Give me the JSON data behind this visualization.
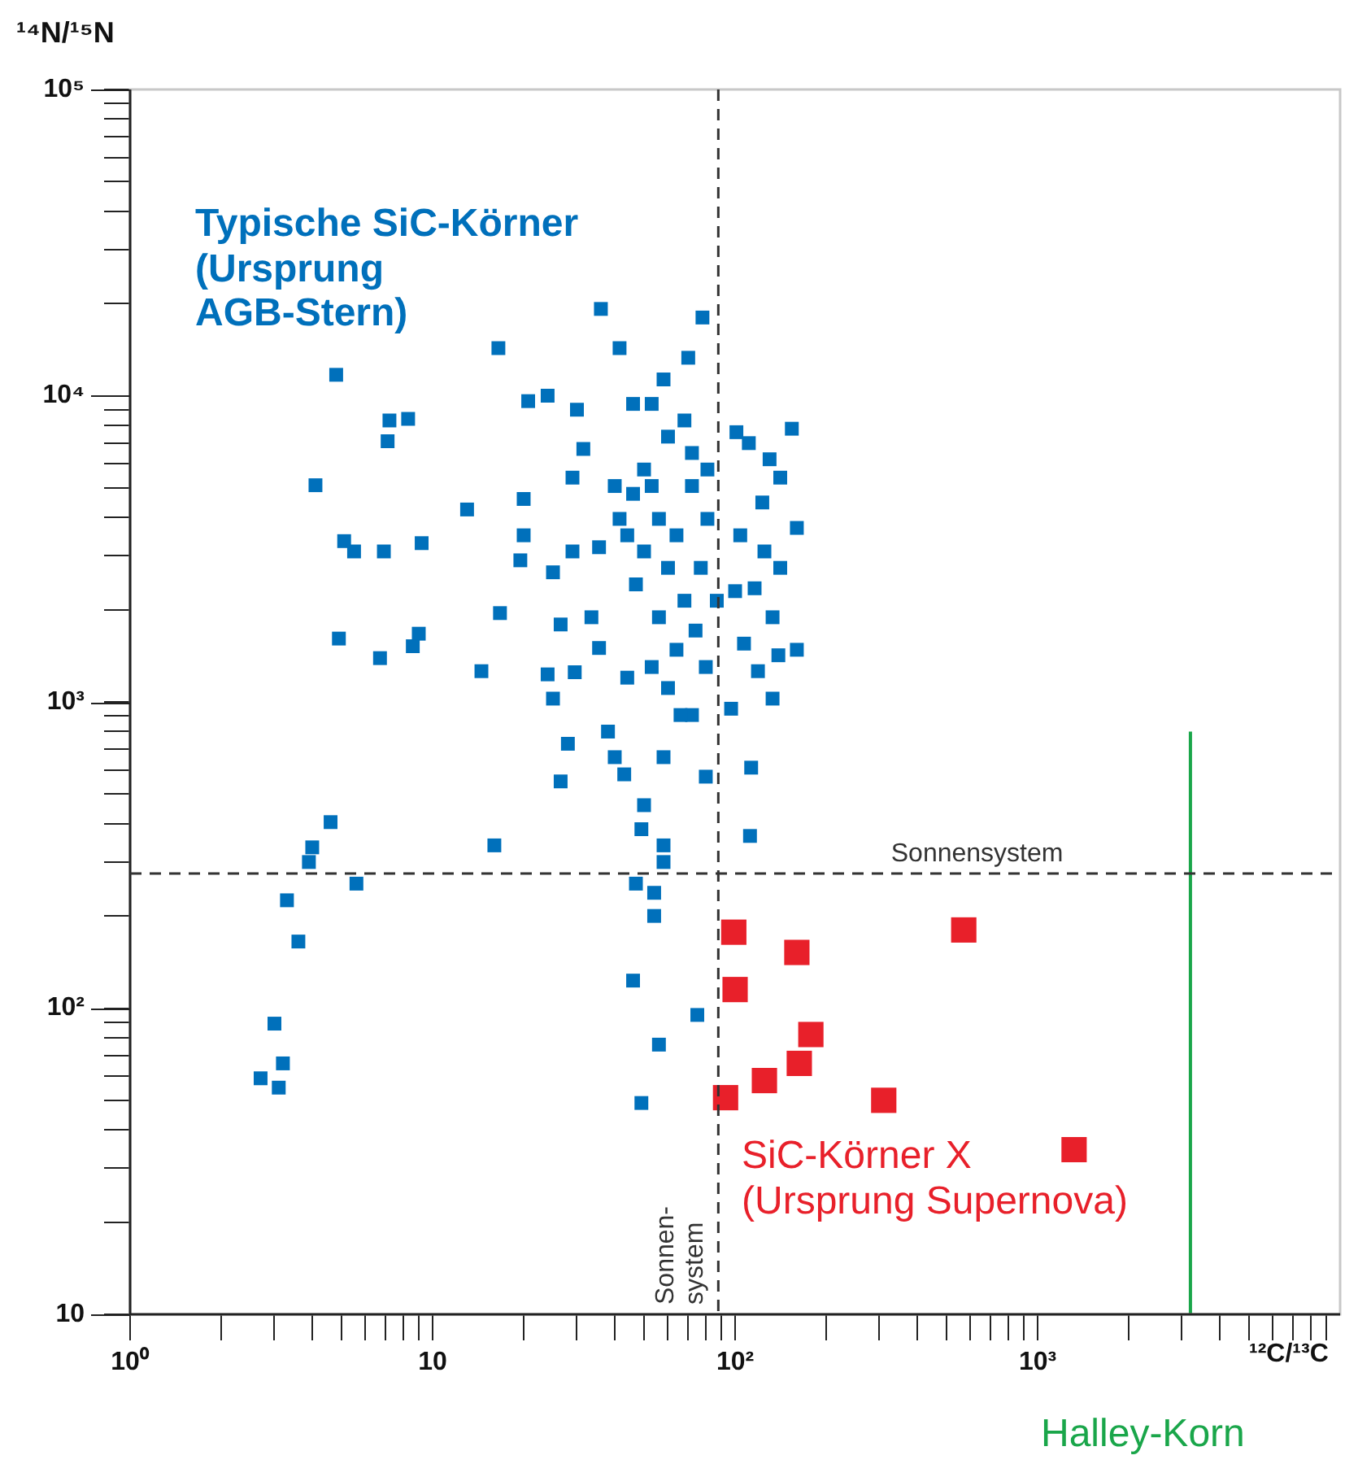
{
  "chart_data": {
    "type": "scatter",
    "xlabel": "¹²C/¹³C",
    "ylabel": "¹⁴N/¹⁵N",
    "log": "xy",
    "marker": "square",
    "xlim": [
      1,
      10000
    ],
    "ylim": [
      10,
      100000
    ],
    "xticks": [
      {
        "value": 1,
        "label": "10⁰"
      },
      {
        "value": 2,
        "label": null
      },
      {
        "value": 3,
        "label": null
      },
      {
        "value": 4,
        "label": null
      },
      {
        "value": 5,
        "label": null
      },
      {
        "value": 6,
        "label": null
      },
      {
        "value": 7,
        "label": null
      },
      {
        "value": 8,
        "label": null
      },
      {
        "value": 9,
        "label": null
      },
      10,
      {
        "value": 20,
        "label": null
      },
      {
        "value": 30,
        "label": null
      },
      {
        "value": 40,
        "label": null
      },
      {
        "value": 50,
        "label": null
      },
      {
        "value": 60,
        "label": null
      },
      {
        "value": 70,
        "label": null
      },
      {
        "value": 80,
        "label": null
      },
      {
        "value": 90,
        "label": null
      },
      {
        "value": 100,
        "label": "10²"
      },
      {
        "value": 200,
        "label": null
      },
      {
        "value": 300,
        "label": null
      },
      {
        "value": 400,
        "label": null
      },
      {
        "value": 500,
        "label": null
      },
      {
        "value": 600,
        "label": null
      },
      {
        "value": 700,
        "label": null
      },
      {
        "value": 800,
        "label": null
      },
      {
        "value": 900,
        "label": null
      },
      {
        "value": 1000,
        "label": "10³"
      },
      {
        "value": 2000,
        "label": null
      },
      {
        "value": 3000,
        "label": null
      },
      {
        "value": 4000,
        "label": null
      },
      {
        "value": 5000,
        "label": null
      },
      {
        "value": 6000,
        "label": null
      },
      {
        "value": 7000,
        "label": null
      },
      {
        "value": 8000,
        "label": null
      },
      {
        "value": 9000,
        "label": null
      }
    ],
    "yticks": [
      10,
      {
        "value": 20,
        "label": null
      },
      {
        "value": 30,
        "label": null
      },
      {
        "value": 40,
        "label": null
      },
      {
        "value": 50,
        "label": null
      },
      {
        "value": 60,
        "label": null
      },
      {
        "value": 70,
        "label": null
      },
      {
        "value": 80,
        "label": null
      },
      {
        "value": 90,
        "label": null
      },
      {
        "value": 100,
        "label": "10²"
      },
      {
        "value": 200,
        "label": null
      },
      {
        "value": 300,
        "label": null
      },
      {
        "value": 400,
        "label": null
      },
      {
        "value": 500,
        "label": null
      },
      {
        "value": 600,
        "label": null
      },
      {
        "value": 700,
        "label": null
      },
      {
        "value": 800,
        "label": null
      },
      {
        "value": 900,
        "label": null
      },
      {
        "value": 1000,
        "label": "10³"
      },
      {
        "value": 2000,
        "label": null
      },
      {
        "value": 3000,
        "label": null
      },
      {
        "value": 4000,
        "label": null
      },
      {
        "value": 5000,
        "label": null
      },
      {
        "value": 6000,
        "label": null
      },
      {
        "value": 7000,
        "label": null
      },
      {
        "value": 8000,
        "label": null
      },
      {
        "value": 9000,
        "label": null
      },
      {
        "value": 10000,
        "label": "10⁴"
      },
      {
        "value": 20000,
        "label": null
      },
      {
        "value": 30000,
        "label": null
      },
      {
        "value": 40000,
        "label": null
      },
      {
        "value": 50000,
        "label": null
      },
      {
        "value": 60000,
        "label": null
      },
      {
        "value": 70000,
        "label": null
      },
      {
        "value": 80000,
        "label": null
      },
      {
        "value": 90000,
        "label": null
      },
      {
        "value": 100000,
        "label": "10⁵"
      }
    ],
    "ref_lines": [
      {
        "axis": "y",
        "value": 275,
        "label": "Sonnensystem",
        "color": "#333333",
        "line_style": "dashed"
      },
      {
        "axis": "x",
        "value": 88,
        "label": "Sonnen-\nsystem",
        "color": "#333333",
        "line_style": "dashed"
      }
    ],
    "series": [
      {
        "name": "Typische SiC-Körner\n(Ursprung\nAGB-Stern)",
        "color": "#0070bb",
        "x": [
          36,
          78,
          16.5,
          41.5,
          4.8,
          70,
          58,
          20.7,
          24,
          30,
          46,
          7.2,
          8.3,
          7.1,
          4.1,
          13,
          9.2,
          5.1,
          5.5,
          6.9,
          4.9,
          9.0,
          8.6,
          6.7,
          14.5,
          16.7,
          24,
          25,
          28,
          26.5,
          16,
          4.6,
          4.0,
          3.9,
          3.3,
          3.6,
          5.6,
          3.0,
          3.2,
          2.7,
          3.1,
          46,
          49,
          56,
          75,
          54,
          54,
          47,
          58,
          58,
          43,
          49,
          50,
          58,
          40,
          38,
          80,
          112,
          113,
          133,
          97,
          72,
          154,
          101,
          160,
          141,
          130,
          111,
          123,
          100,
          133,
          160,
          139,
          119,
          107,
          116,
          141,
          125,
          104,
          40,
          35.5,
          29,
          25,
          19.5,
          20,
          20,
          29,
          31.5,
          46,
          26.5,
          33.5,
          29.5,
          35.5,
          44,
          53,
          60,
          66,
          74,
          64,
          56,
          72,
          50,
          60,
          68,
          53,
          77,
          47,
          56,
          68,
          81,
          81,
          50,
          60,
          64,
          80,
          44,
          87,
          72,
          41.5,
          53
        ],
        "values": [
          19200,
          18000,
          14300,
          14300,
          11700,
          13300,
          11300,
          9600,
          10000,
          9000,
          9400,
          8300,
          8400,
          7100,
          5100,
          4250,
          3300,
          3350,
          3100,
          3100,
          1610,
          1670,
          1520,
          1390,
          1260,
          1950,
          1230,
          1025,
          730,
          550,
          340,
          405,
          335,
          300,
          225,
          165,
          255,
          89,
          66,
          59,
          55,
          123,
          49,
          76,
          95,
          200,
          238,
          255,
          300,
          340,
          580,
          384,
          460,
          660,
          660,
          800,
          570,
          365,
          610,
          1025,
          950,
          906,
          7800,
          7600,
          3700,
          5400,
          6200,
          7000,
          4480,
          2300,
          1890,
          1480,
          1420,
          1260,
          1550,
          2350,
          2740,
          3100,
          3500,
          5070,
          3200,
          3100,
          2650,
          2900,
          3500,
          4600,
          5400,
          6700,
          4780,
          1790,
          1890,
          1250,
          1500,
          1200,
          1300,
          1110,
          906,
          1710,
          3500,
          3960,
          5070,
          5740,
          7350,
          8300,
          9400,
          2740,
          2420,
          1890,
          2140,
          3960,
          5740,
          3100,
          2740,
          1480,
          1300,
          3500,
          2140,
          6500,
          3960,
          5070
        ]
      },
      {
        "name": "SiC-Körner X\n(Ursprung Supernova)",
        "color": "#e8202a",
        "x": [
          99,
          160,
          570,
          100,
          178,
          163,
          125,
          93,
          310,
          1320
        ],
        "values": [
          177,
          152,
          180,
          115,
          82,
          66,
          58,
          51,
          50,
          34.5
        ]
      },
      {
        "name": "Halley-Korn",
        "color": "#1aa64a",
        "type": "line",
        "marker": "none",
        "x": [
          3200,
          3200
        ],
        "values": [
          10,
          800
        ]
      }
    ]
  }
}
